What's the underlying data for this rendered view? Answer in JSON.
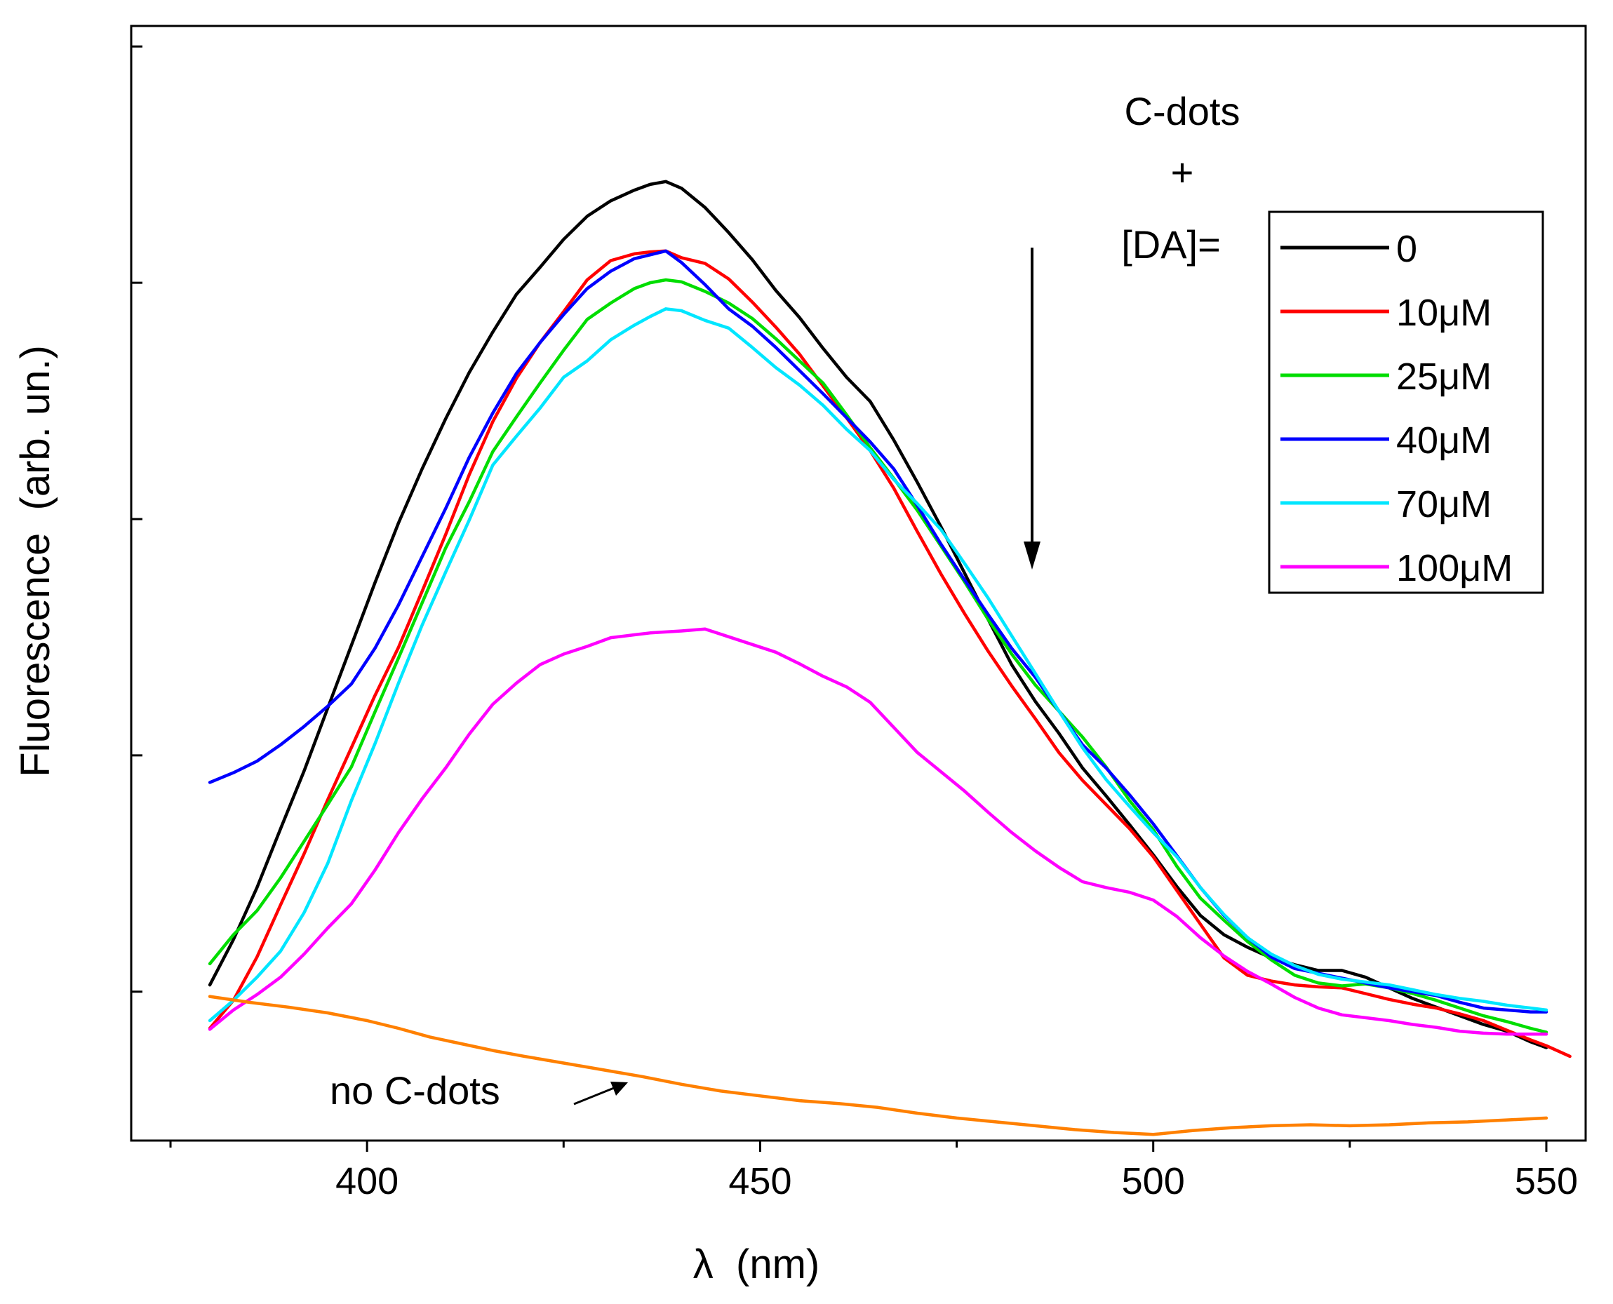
{
  "chart_data": {
    "type": "line",
    "title": "",
    "xlabel": "λ  (nm)",
    "ylabel": "Fluorescence  (arb. un.)",
    "xlim": [
      370,
      555
    ],
    "ylim": [
      0,
      1
    ],
    "x_ticks": [
      400,
      450,
      500,
      550
    ],
    "y_ticks_labeled": false,
    "grid": false,
    "legend": {
      "placement": "top-right",
      "title": "C-dots + [DA]=",
      "title_lines": [
        "C-dots",
        "+",
        "[DA]="
      ],
      "entries": [
        "0",
        "10μM",
        "25μM",
        "40μM",
        "70μM",
        "100μM"
      ]
    },
    "arrow_annotation": "decreasing intensity with increasing [DA]",
    "no_cdots_label": "no C-dots",
    "series": [
      {
        "name": "0",
        "color": "#000000",
        "x": [
          380,
          383,
          386,
          389,
          392,
          395,
          398,
          401,
          404,
          407,
          410,
          413,
          416,
          419,
          422,
          425,
          428,
          431,
          434,
          436,
          438,
          440,
          443,
          446,
          449,
          452,
          455,
          458,
          461,
          464,
          467,
          470,
          473,
          476,
          479,
          482,
          485,
          488,
          491,
          494,
          497,
          500,
          503,
          506,
          509,
          512,
          515,
          518,
          521,
          524,
          527,
          530,
          533,
          536,
          539,
          542,
          545,
          548,
          550
        ],
        "y": [
          0.157,
          0.204,
          0.258,
          0.319,
          0.379,
          0.444,
          0.509,
          0.574,
          0.636,
          0.692,
          0.744,
          0.792,
          0.834,
          0.873,
          0.901,
          0.93,
          0.954,
          0.97,
          0.981,
          0.987,
          0.99,
          0.983,
          0.963,
          0.937,
          0.909,
          0.877,
          0.849,
          0.817,
          0.787,
          0.762,
          0.722,
          0.678,
          0.632,
          0.584,
          0.536,
          0.489,
          0.451,
          0.418,
          0.382,
          0.353,
          0.323,
          0.292,
          0.259,
          0.229,
          0.209,
          0.196,
          0.185,
          0.178,
          0.172,
          0.172,
          0.165,
          0.154,
          0.143,
          0.134,
          0.125,
          0.116,
          0.109,
          0.098,
          0.092
        ]
      },
      {
        "name": "10μM",
        "color": "#ff0000",
        "x": [
          380,
          383,
          386,
          389,
          392,
          395,
          398,
          401,
          404,
          407,
          410,
          413,
          416,
          419,
          422,
          425,
          428,
          431,
          434,
          436,
          438,
          440,
          443,
          446,
          449,
          452,
          455,
          458,
          461,
          464,
          467,
          470,
          473,
          476,
          479,
          482,
          485,
          488,
          491,
          494,
          497,
          500,
          503,
          506,
          509,
          512,
          515,
          518,
          521,
          524,
          527,
          530,
          533,
          536,
          539,
          542,
          545,
          548,
          550,
          553
        ],
        "y": [
          0.112,
          0.141,
          0.186,
          0.24,
          0.293,
          0.349,
          0.403,
          0.457,
          0.507,
          0.565,
          0.624,
          0.686,
          0.741,
          0.786,
          0.823,
          0.855,
          0.888,
          0.908,
          0.915,
          0.917,
          0.918,
          0.911,
          0.905,
          0.889,
          0.865,
          0.839,
          0.811,
          0.778,
          0.745,
          0.711,
          0.672,
          0.627,
          0.583,
          0.542,
          0.503,
          0.467,
          0.433,
          0.398,
          0.369,
          0.344,
          0.319,
          0.29,
          0.255,
          0.22,
          0.185,
          0.167,
          0.161,
          0.157,
          0.155,
          0.154,
          0.148,
          0.142,
          0.137,
          0.133,
          0.127,
          0.12,
          0.11,
          0.1,
          0.094,
          0.083
        ]
      },
      {
        "name": "25μM",
        "color": "#00dd00",
        "x": [
          380,
          383,
          386,
          389,
          392,
          395,
          398,
          401,
          404,
          407,
          410,
          413,
          416,
          419,
          422,
          425,
          428,
          431,
          434,
          436,
          438,
          440,
          443,
          446,
          449,
          452,
          455,
          458,
          461,
          464,
          467,
          470,
          473,
          476,
          479,
          482,
          485,
          488,
          491,
          494,
          497,
          500,
          503,
          506,
          509,
          512,
          515,
          518,
          521,
          524,
          527,
          530,
          533,
          536,
          539,
          542,
          545,
          548,
          550
        ],
        "y": [
          0.179,
          0.209,
          0.234,
          0.268,
          0.306,
          0.344,
          0.383,
          0.44,
          0.496,
          0.553,
          0.61,
          0.658,
          0.71,
          0.746,
          0.781,
          0.815,
          0.847,
          0.864,
          0.879,
          0.885,
          0.888,
          0.886,
          0.876,
          0.864,
          0.848,
          0.827,
          0.804,
          0.781,
          0.748,
          0.714,
          0.682,
          0.649,
          0.612,
          0.575,
          0.536,
          0.5,
          0.468,
          0.441,
          0.414,
          0.383,
          0.348,
          0.318,
          0.28,
          0.247,
          0.224,
          0.202,
          0.183,
          0.167,
          0.159,
          0.156,
          0.158,
          0.154,
          0.148,
          0.141,
          0.133,
          0.125,
          0.119,
          0.112,
          0.108
        ]
      },
      {
        "name": "40μM",
        "color": "#0000ff",
        "x": [
          380,
          383,
          386,
          389,
          392,
          395,
          398,
          401,
          404,
          407,
          410,
          413,
          416,
          419,
          422,
          425,
          428,
          431,
          434,
          436,
          438,
          440,
          443,
          446,
          449,
          452,
          455,
          458,
          461,
          464,
          467,
          470,
          473,
          476,
          479,
          482,
          485,
          488,
          491,
          494,
          497,
          500,
          503,
          506,
          509,
          512,
          515,
          518,
          521,
          524,
          527,
          530,
          533,
          536,
          539,
          542,
          545,
          548,
          550
        ],
        "y": [
          0.367,
          0.377,
          0.389,
          0.406,
          0.425,
          0.446,
          0.469,
          0.506,
          0.551,
          0.601,
          0.651,
          0.704,
          0.75,
          0.791,
          0.823,
          0.852,
          0.879,
          0.897,
          0.91,
          0.914,
          0.918,
          0.906,
          0.883,
          0.858,
          0.84,
          0.818,
          0.794,
          0.77,
          0.745,
          0.72,
          0.692,
          0.654,
          0.614,
          0.577,
          0.541,
          0.506,
          0.476,
          0.441,
          0.406,
          0.382,
          0.354,
          0.324,
          0.291,
          0.258,
          0.229,
          0.206,
          0.186,
          0.174,
          0.169,
          0.164,
          0.159,
          0.154,
          0.15,
          0.146,
          0.139,
          0.133,
          0.131,
          0.129,
          0.129
        ]
      },
      {
        "name": "70μM",
        "color": "#00e6ff",
        "x": [
          380,
          383,
          386,
          389,
          392,
          395,
          398,
          401,
          404,
          407,
          410,
          413,
          416,
          419,
          422,
          425,
          428,
          431,
          434,
          436,
          438,
          440,
          443,
          446,
          449,
          452,
          455,
          458,
          461,
          464,
          467,
          470,
          473,
          476,
          479,
          482,
          485,
          488,
          491,
          494,
          497,
          500,
          503,
          506,
          509,
          512,
          515,
          518,
          521,
          524,
          527,
          530,
          533,
          536,
          539,
          542,
          545,
          548,
          550
        ],
        "y": [
          0.12,
          0.141,
          0.165,
          0.192,
          0.232,
          0.283,
          0.348,
          0.407,
          0.47,
          0.53,
          0.585,
          0.639,
          0.696,
          0.726,
          0.755,
          0.787,
          0.804,
          0.826,
          0.841,
          0.85,
          0.858,
          0.856,
          0.846,
          0.838,
          0.818,
          0.797,
          0.779,
          0.758,
          0.733,
          0.711,
          0.681,
          0.656,
          0.629,
          0.594,
          0.558,
          0.519,
          0.48,
          0.441,
          0.403,
          0.37,
          0.342,
          0.315,
          0.29,
          0.258,
          0.23,
          0.206,
          0.189,
          0.177,
          0.168,
          0.163,
          0.16,
          0.157,
          0.152,
          0.147,
          0.143,
          0.14,
          0.136,
          0.133,
          0.131
        ]
      },
      {
        "name": "100μM",
        "color": "#ff00ff",
        "x": [
          380,
          383,
          386,
          389,
          392,
          395,
          398,
          401,
          404,
          407,
          410,
          413,
          416,
          419,
          422,
          425,
          428,
          431,
          434,
          436,
          438,
          440,
          443,
          446,
          449,
          452,
          455,
          458,
          461,
          464,
          467,
          470,
          473,
          476,
          479,
          482,
          485,
          488,
          491,
          494,
          497,
          500,
          503,
          506,
          509,
          512,
          515,
          518,
          521,
          524,
          527,
          530,
          533,
          536,
          539,
          542,
          545,
          548,
          550
        ],
        "y": [
          0.111,
          0.131,
          0.147,
          0.165,
          0.189,
          0.216,
          0.241,
          0.276,
          0.315,
          0.35,
          0.382,
          0.417,
          0.448,
          0.47,
          0.489,
          0.5,
          0.508,
          0.517,
          0.52,
          0.522,
          0.523,
          0.524,
          0.526,
          0.518,
          0.51,
          0.502,
          0.49,
          0.477,
          0.466,
          0.45,
          0.424,
          0.398,
          0.378,
          0.358,
          0.336,
          0.315,
          0.296,
          0.279,
          0.264,
          0.258,
          0.253,
          0.245,
          0.228,
          0.206,
          0.187,
          0.171,
          0.158,
          0.144,
          0.133,
          0.126,
          0.123,
          0.12,
          0.116,
          0.113,
          0.109,
          0.107,
          0.106,
          0.106,
          0.106
        ]
      },
      {
        "name": "no C-dots",
        "color": "#ff8000",
        "x": [
          380,
          385,
          390,
          395,
          400,
          404,
          408,
          412,
          416,
          420,
          425,
          430,
          435,
          440,
          445,
          450,
          455,
          460,
          465,
          470,
          475,
          480,
          485,
          490,
          495,
          500,
          505,
          510,
          515,
          520,
          525,
          530,
          535,
          540,
          545,
          550
        ],
        "y": [
          0.145,
          0.139,
          0.134,
          0.128,
          0.12,
          0.112,
          0.103,
          0.096,
          0.089,
          0.083,
          0.076,
          0.069,
          0.062,
          0.054,
          0.047,
          0.042,
          0.037,
          0.034,
          0.03,
          0.024,
          0.019,
          0.015,
          0.011,
          0.007,
          0.004,
          0.002,
          0.006,
          0.009,
          0.011,
          0.012,
          0.011,
          0.012,
          0.014,
          0.015,
          0.017,
          0.019
        ]
      }
    ]
  }
}
